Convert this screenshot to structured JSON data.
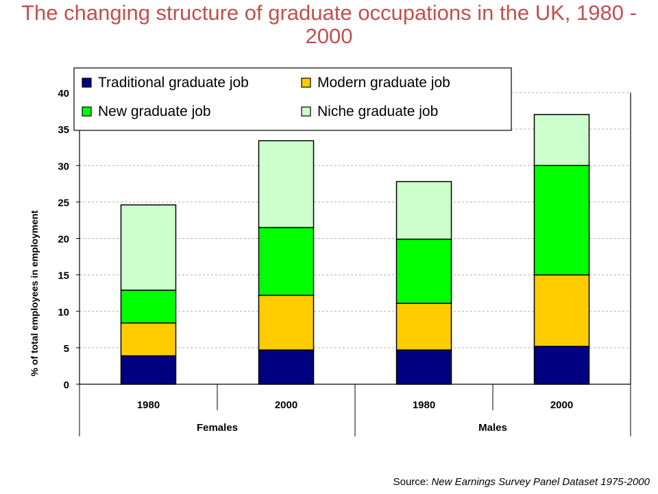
{
  "page": {
    "title": "The changing structure of graduate occupations in the UK, 1980 - 2000",
    "source_prefix": "Source: ",
    "source_text": "New Earnings Survey Panel Dataset 1975-2000"
  },
  "chart_data": {
    "type": "bar",
    "stacked": true,
    "title": "The changing structure of graduate occupations in the UK, 1980 - 2000",
    "xlabel": "",
    "ylabel": "% of total employees in employment",
    "ylim": [
      0,
      40
    ],
    "yticks": [
      0,
      5,
      10,
      15,
      20,
      25,
      30,
      35,
      40
    ],
    "grid": true,
    "legend_position": "top",
    "categories": [
      "1980",
      "2000",
      "1980",
      "2000"
    ],
    "groups": [
      {
        "label": "Females",
        "span": [
          0,
          1
        ]
      },
      {
        "label": "Males",
        "span": [
          2,
          3
        ]
      }
    ],
    "series": [
      {
        "name": "Traditional graduate job",
        "color": "#000080",
        "values": [
          3.9,
          4.7,
          4.7,
          5.2
        ]
      },
      {
        "name": "Modern graduate job",
        "color": "#ffcc00",
        "values": [
          4.5,
          7.5,
          6.4,
          9.8
        ]
      },
      {
        "name": "New graduate job",
        "color": "#00ff00",
        "values": [
          4.5,
          9.3,
          8.8,
          15.0
        ]
      },
      {
        "name": "Niche graduate job",
        "color": "#ccffcc",
        "values": [
          11.7,
          11.9,
          7.9,
          7.0
        ]
      }
    ],
    "legend_order": [
      0,
      1,
      2,
      3
    ]
  }
}
